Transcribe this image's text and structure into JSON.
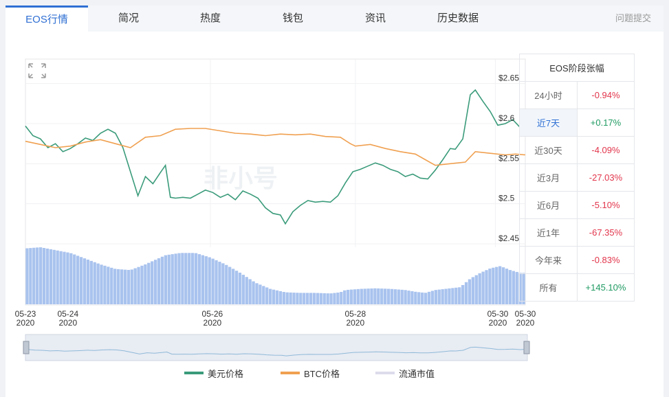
{
  "tabs": [
    {
      "label": "EOS行情",
      "active": true
    },
    {
      "label": "简况"
    },
    {
      "label": "热度"
    },
    {
      "label": "钱包"
    },
    {
      "label": "资讯"
    },
    {
      "label": "历史数据"
    }
  ],
  "report_link": "问题提交",
  "watermark": "非小号",
  "icons": {
    "expand": "expand-icon"
  },
  "colors": {
    "usd": "#3a9b7a",
    "btc": "#f0a050",
    "volume": "#a9c3ee",
    "negative": "#e2354b",
    "positive": "#1f9a62",
    "accent": "#2f6fd3"
  },
  "price_table": {
    "title": "EOS阶段张幅",
    "rows": [
      {
        "label": "24小时",
        "value": "-0.94%",
        "dir": "neg"
      },
      {
        "label": "近7天",
        "value": "+0.17%",
        "dir": "pos",
        "selected": true
      },
      {
        "label": "近30天",
        "value": "-4.09%",
        "dir": "neg"
      },
      {
        "label": "近3月",
        "value": "-27.03%",
        "dir": "neg"
      },
      {
        "label": "近6月",
        "value": "-5.10%",
        "dir": "neg"
      },
      {
        "label": "近1年",
        "value": "-67.35%",
        "dir": "neg"
      },
      {
        "label": "今年来",
        "value": "-0.83%",
        "dir": "neg"
      },
      {
        "label": "所有",
        "value": "+145.10%",
        "dir": "pos"
      }
    ]
  },
  "legend": [
    {
      "label": "美元价格",
      "color": "#3a9b7a"
    },
    {
      "label": "BTC价格",
      "color": "#f0a050"
    },
    {
      "label": "流通市值",
      "color": "#dcdcec"
    }
  ],
  "chart_data": {
    "type": "line",
    "y_ticks": [
      2.45,
      2.5,
      2.55,
      2.6,
      2.65
    ],
    "y_tick_labels": [
      "$2.45",
      "$2.5",
      "$2.55",
      "$2.6",
      "$2.65"
    ],
    "ylim": [
      2.45,
      2.66
    ],
    "x_ticks": [
      {
        "t": 0.0,
        "date": "05-23",
        "year": "2020"
      },
      {
        "t": 0.085,
        "date": "05-24",
        "year": "2020"
      },
      {
        "t": 0.374,
        "date": "05-26",
        "year": "2020"
      },
      {
        "t": 0.66,
        "date": "05-28",
        "year": "2020"
      },
      {
        "t": 0.945,
        "date": "05-30",
        "year": "2020"
      },
      {
        "t": 1.0,
        "date": "05-30",
        "year": "2020"
      }
    ],
    "series": [
      {
        "name": "美元价格",
        "values": [
          [
            0.0,
            2.597
          ],
          [
            0.015,
            2.585
          ],
          [
            0.03,
            2.581
          ],
          [
            0.045,
            2.57
          ],
          [
            0.06,
            2.575
          ],
          [
            0.075,
            2.565
          ],
          [
            0.09,
            2.569
          ],
          [
            0.105,
            2.575
          ],
          [
            0.12,
            2.582
          ],
          [
            0.135,
            2.579
          ],
          [
            0.15,
            2.588
          ],
          [
            0.165,
            2.593
          ],
          [
            0.18,
            2.588
          ],
          [
            0.195,
            2.57
          ],
          [
            0.21,
            2.54
          ],
          [
            0.225,
            2.51
          ],
          [
            0.24,
            2.534
          ],
          [
            0.255,
            2.525
          ],
          [
            0.27,
            2.539
          ],
          [
            0.28,
            2.548
          ],
          [
            0.29,
            2.508
          ],
          [
            0.3,
            2.507
          ],
          [
            0.315,
            2.508
          ],
          [
            0.33,
            2.507
          ],
          [
            0.345,
            2.512
          ],
          [
            0.36,
            2.517
          ],
          [
            0.375,
            2.514
          ],
          [
            0.39,
            2.508
          ],
          [
            0.405,
            2.512
          ],
          [
            0.42,
            2.505
          ],
          [
            0.435,
            2.516
          ],
          [
            0.45,
            2.512
          ],
          [
            0.465,
            2.507
          ],
          [
            0.48,
            2.495
          ],
          [
            0.495,
            2.488
          ],
          [
            0.51,
            2.486
          ],
          [
            0.52,
            2.475
          ],
          [
            0.535,
            2.49
          ],
          [
            0.55,
            2.498
          ],
          [
            0.565,
            2.504
          ],
          [
            0.58,
            2.502
          ],
          [
            0.595,
            2.503
          ],
          [
            0.61,
            2.502
          ],
          [
            0.625,
            2.51
          ],
          [
            0.64,
            2.526
          ],
          [
            0.655,
            2.54
          ],
          [
            0.67,
            2.543
          ],
          [
            0.685,
            2.547
          ],
          [
            0.7,
            2.551
          ],
          [
            0.715,
            2.548
          ],
          [
            0.73,
            2.543
          ],
          [
            0.745,
            2.54
          ],
          [
            0.76,
            2.534
          ],
          [
            0.775,
            2.537
          ],
          [
            0.79,
            2.532
          ],
          [
            0.805,
            2.531
          ],
          [
            0.82,
            2.542
          ],
          [
            0.835,
            2.555
          ],
          [
            0.85,
            2.569
          ],
          [
            0.86,
            2.568
          ],
          [
            0.875,
            2.581
          ],
          [
            0.885,
            2.618
          ],
          [
            0.89,
            2.636
          ],
          [
            0.9,
            2.642
          ],
          [
            0.915,
            2.628
          ],
          [
            0.93,
            2.615
          ],
          [
            0.945,
            2.598
          ],
          [
            0.96,
            2.6
          ],
          [
            0.975,
            2.605
          ],
          [
            0.99,
            2.595
          ],
          [
            1.0,
            2.6
          ]
        ]
      },
      {
        "name": "BTC价格",
        "values": [
          [
            0.0,
            2.578
          ],
          [
            0.03,
            2.574
          ],
          [
            0.06,
            2.57
          ],
          [
            0.09,
            2.572
          ],
          [
            0.12,
            2.577
          ],
          [
            0.15,
            2.58
          ],
          [
            0.18,
            2.575
          ],
          [
            0.21,
            2.57
          ],
          [
            0.24,
            2.583
          ],
          [
            0.27,
            2.585
          ],
          [
            0.3,
            2.593
          ],
          [
            0.33,
            2.594
          ],
          [
            0.36,
            2.594
          ],
          [
            0.39,
            2.591
          ],
          [
            0.42,
            2.588
          ],
          [
            0.45,
            2.587
          ],
          [
            0.48,
            2.585
          ],
          [
            0.51,
            2.587
          ],
          [
            0.54,
            2.586
          ],
          [
            0.57,
            2.587
          ],
          [
            0.6,
            2.584
          ],
          [
            0.63,
            2.583
          ],
          [
            0.65,
            2.575
          ],
          [
            0.66,
            2.572
          ],
          [
            0.69,
            2.574
          ],
          [
            0.72,
            2.569
          ],
          [
            0.75,
            2.565
          ],
          [
            0.78,
            2.562
          ],
          [
            0.8,
            2.555
          ],
          [
            0.82,
            2.548
          ],
          [
            0.85,
            2.55
          ],
          [
            0.88,
            2.552
          ],
          [
            0.9,
            2.565
          ],
          [
            0.93,
            2.563
          ],
          [
            0.96,
            2.561
          ],
          [
            0.98,
            2.562
          ],
          [
            1.0,
            2.561
          ]
        ]
      }
    ],
    "volume_profile": [
      [
        0.0,
        0.98
      ],
      [
        0.03,
        1.0
      ],
      [
        0.06,
        0.95
      ],
      [
        0.09,
        0.9
      ],
      [
        0.12,
        0.8
      ],
      [
        0.15,
        0.7
      ],
      [
        0.18,
        0.62
      ],
      [
        0.21,
        0.6
      ],
      [
        0.24,
        0.7
      ],
      [
        0.28,
        0.86
      ],
      [
        0.31,
        0.9
      ],
      [
        0.34,
        0.9
      ],
      [
        0.37,
        0.82
      ],
      [
        0.4,
        0.7
      ],
      [
        0.43,
        0.55
      ],
      [
        0.46,
        0.38
      ],
      [
        0.49,
        0.27
      ],
      [
        0.52,
        0.21
      ],
      [
        0.55,
        0.2
      ],
      [
        0.58,
        0.2
      ],
      [
        0.61,
        0.19
      ],
      [
        0.63,
        0.21
      ],
      [
        0.64,
        0.25
      ],
      [
        0.67,
        0.27
      ],
      [
        0.7,
        0.28
      ],
      [
        0.73,
        0.27
      ],
      [
        0.76,
        0.25
      ],
      [
        0.78,
        0.22
      ],
      [
        0.8,
        0.2
      ],
      [
        0.82,
        0.25
      ],
      [
        0.85,
        0.28
      ],
      [
        0.87,
        0.3
      ],
      [
        0.89,
        0.45
      ],
      [
        0.91,
        0.55
      ],
      [
        0.93,
        0.63
      ],
      [
        0.95,
        0.67
      ],
      [
        0.97,
        0.6
      ],
      [
        0.99,
        0.55
      ],
      [
        1.0,
        0.55
      ]
    ]
  }
}
